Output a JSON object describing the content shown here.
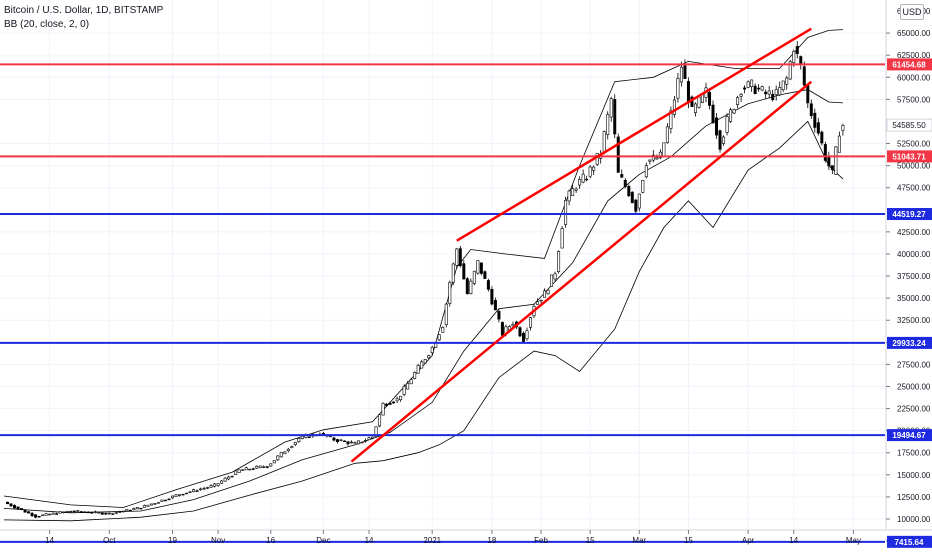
{
  "header": {
    "title": "Bitcoin / U.S. Dollar, 1D, BITSTAMP",
    "indicator": "BB (20, close, 2, 0)"
  },
  "currency_button": "USD",
  "chart_data": {
    "type": "candlestick",
    "symbol": "BTCUSD",
    "interval": "1D",
    "x_ticks": [
      "14",
      "Oct",
      "19",
      "Nov",
      "16",
      "Dec",
      "14",
      "2021",
      "18",
      "Feb",
      "15",
      "Mar",
      "15",
      "Apr",
      "14",
      "May"
    ],
    "y_ticks": [
      "7500.00",
      "10000.00",
      "12500.00",
      "15000.00",
      "17500.00",
      "20000.00",
      "22500.00",
      "25000.00",
      "27500.00",
      "30000.00",
      "32500.00",
      "35000.00",
      "37500.00",
      "40000.00",
      "42500.00",
      "47500.00",
      "50000.00",
      "52500.00",
      "57500.00",
      "60000.00",
      "62500.00",
      "65000.00"
    ],
    "y_top_label": "67500.00",
    "ylim": [
      6000,
      68000
    ],
    "horizontal_levels": [
      {
        "value": 61454.68,
        "label": "61454.68",
        "color": "#f23645"
      },
      {
        "value": 51043.71,
        "label": "51043.71",
        "color": "#f23645"
      },
      {
        "value": 44519.27,
        "label": "44519.27",
        "color": "#1e2ae0"
      },
      {
        "value": 29933.24,
        "label": "29933.24",
        "color": "#1e2ae0"
      },
      {
        "value": 19494.67,
        "label": "19494.67",
        "color": "#1e2ae0"
      },
      {
        "value": 7415.64,
        "label": "7415.64",
        "color": "#1e2ae0"
      }
    ],
    "last_price": {
      "value": 54585.5,
      "label": "54585.50"
    },
    "trend_channel": {
      "color": "#ff0000",
      "upper": [
        [
          "2021-01-08",
          41500
        ],
        [
          "2021-04-19",
          65500
        ]
      ],
      "lower": [
        [
          "2020-12-09",
          16500
        ],
        [
          "2021-04-19",
          59500
        ]
      ]
    },
    "close_series": [
      [
        "2020-09-01",
        11900
      ],
      [
        "2020-09-10",
        10300
      ],
      [
        "2020-09-20",
        10900
      ],
      [
        "2020-10-01",
        10600
      ],
      [
        "2020-10-10",
        11300
      ],
      [
        "2020-10-21",
        12800
      ],
      [
        "2020-10-31",
        13800
      ],
      [
        "2020-11-07",
        15500
      ],
      [
        "2020-11-15",
        16000
      ],
      [
        "2020-11-24",
        19100
      ],
      [
        "2020-11-30",
        19700
      ],
      [
        "2020-12-04",
        19000
      ],
      [
        "2020-12-10",
        18500
      ],
      [
        "2020-12-15",
        19300
      ],
      [
        "2020-12-18",
        23000
      ],
      [
        "2020-12-22",
        23500
      ],
      [
        "2020-12-27",
        26500
      ],
      [
        "2021-01-01",
        29400
      ],
      [
        "2021-01-04",
        32000
      ],
      [
        "2021-01-06",
        36800
      ],
      [
        "2021-01-08",
        40600
      ],
      [
        "2021-01-11",
        35500
      ],
      [
        "2021-01-14",
        39000
      ],
      [
        "2021-01-17",
        36000
      ],
      [
        "2021-01-21",
        31000
      ],
      [
        "2021-01-24",
        32300
      ],
      [
        "2021-01-27",
        30400
      ],
      [
        "2021-01-30",
        34300
      ],
      [
        "2021-02-02",
        35500
      ],
      [
        "2021-02-05",
        38000
      ],
      [
        "2021-02-08",
        46000
      ],
      [
        "2021-02-11",
        47800
      ],
      [
        "2021-02-14",
        48800
      ],
      [
        "2021-02-18",
        51500
      ],
      [
        "2021-02-21",
        57500
      ],
      [
        "2021-02-23",
        49000
      ],
      [
        "2021-02-26",
        47000
      ],
      [
        "2021-02-28",
        45200
      ],
      [
        "2021-03-03",
        50500
      ],
      [
        "2021-03-07",
        51000
      ],
      [
        "2021-03-10",
        55800
      ],
      [
        "2021-03-13",
        61300
      ],
      [
        "2021-03-16",
        56000
      ],
      [
        "2021-03-20",
        58300
      ],
      [
        "2021-03-24",
        52500
      ],
      [
        "2021-03-26",
        55000
      ],
      [
        "2021-03-30",
        58800
      ],
      [
        "2021-04-02",
        59000
      ],
      [
        "2021-04-06",
        58100
      ],
      [
        "2021-04-09",
        58000
      ],
      [
        "2021-04-12",
        59800
      ],
      [
        "2021-04-14",
        63500
      ],
      [
        "2021-04-16",
        61200
      ],
      [
        "2021-04-18",
        57000
      ],
      [
        "2021-04-21",
        53800
      ],
      [
        "2021-04-23",
        51000
      ],
      [
        "2021-04-25",
        49000
      ],
      [
        "2021-04-27",
        54000
      ],
      [
        "2021-04-28",
        54585.5
      ]
    ],
    "bollinger": {
      "name": "BB (20, close, 2, 0)",
      "upper": [
        [
          "2020-09-01",
          12600
        ],
        [
          "2020-09-20",
          11600
        ],
        [
          "2020-10-05",
          11300
        ],
        [
          "2020-10-20",
          13300
        ],
        [
          "2020-11-05",
          15300
        ],
        [
          "2020-11-20",
          18700
        ],
        [
          "2020-12-01",
          20100
        ],
        [
          "2020-12-15",
          21000
        ],
        [
          "2021-01-01",
          28500
        ],
        [
          "2021-01-08",
          38500
        ],
        [
          "2021-01-12",
          40500
        ],
        [
          "2021-01-22",
          40000
        ],
        [
          "2021-02-02",
          39500
        ],
        [
          "2021-02-12",
          50000
        ],
        [
          "2021-02-22",
          59500
        ],
        [
          "2021-03-05",
          60000
        ],
        [
          "2021-03-15",
          61800
        ],
        [
          "2021-03-28",
          61000
        ],
        [
          "2021-04-10",
          61000
        ],
        [
          "2021-04-18",
          64500
        ],
        [
          "2021-04-24",
          65300
        ],
        [
          "2021-04-28",
          65400
        ]
      ],
      "basis": [
        [
          "2020-09-01",
          11200
        ],
        [
          "2020-09-20",
          10700
        ],
        [
          "2020-10-10",
          10900
        ],
        [
          "2020-10-25",
          12200
        ],
        [
          "2020-11-10",
          14300
        ],
        [
          "2020-11-25",
          16700
        ],
        [
          "2020-12-10",
          18400
        ],
        [
          "2020-12-20",
          19800
        ],
        [
          "2021-01-01",
          23200
        ],
        [
          "2021-01-10",
          29000
        ],
        [
          "2021-01-20",
          33800
        ],
        [
          "2021-01-30",
          34300
        ],
        [
          "2021-02-10",
          39000
        ],
        [
          "2021-02-20",
          46000
        ],
        [
          "2021-03-01",
          49000
        ],
        [
          "2021-03-10",
          51000
        ],
        [
          "2021-03-20",
          54500
        ],
        [
          "2021-04-01",
          57000
        ],
        [
          "2021-04-10",
          58000
        ],
        [
          "2021-04-18",
          58600
        ],
        [
          "2021-04-24",
          57200
        ],
        [
          "2021-04-28",
          57100
        ]
      ],
      "lower": [
        [
          "2020-09-01",
          9900
        ],
        [
          "2020-09-20",
          9800
        ],
        [
          "2020-10-10",
          10200
        ],
        [
          "2020-10-25",
          10900
        ],
        [
          "2020-11-10",
          12700
        ],
        [
          "2020-11-25",
          14300
        ],
        [
          "2020-12-10",
          16300
        ],
        [
          "2020-12-18",
          16600
        ],
        [
          "2020-12-28",
          17500
        ],
        [
          "2021-01-03",
          18400
        ],
        [
          "2021-01-10",
          20000
        ],
        [
          "2021-01-20",
          26000
        ],
        [
          "2021-01-30",
          29000
        ],
        [
          "2021-02-05",
          28500
        ],
        [
          "2021-02-12",
          26700
        ],
        [
          "2021-02-22",
          31500
        ],
        [
          "2021-03-01",
          38000
        ],
        [
          "2021-03-08",
          43000
        ],
        [
          "2021-03-15",
          46000
        ],
        [
          "2021-03-22",
          43000
        ],
        [
          "2021-04-01",
          49500
        ],
        [
          "2021-04-10",
          52000
        ],
        [
          "2021-04-18",
          55000
        ],
        [
          "2021-04-24",
          50000
        ],
        [
          "2021-04-28",
          48500
        ]
      ]
    },
    "colors": {
      "up": "#ffffff",
      "down": "#000000",
      "wick": "#000000",
      "bands": "#000000",
      "grid": "#f0f3fa"
    }
  }
}
